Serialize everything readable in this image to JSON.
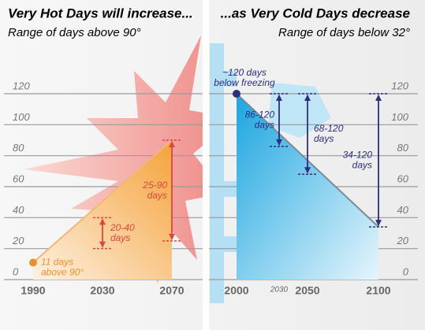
{
  "chart_data": [
    {
      "type": "range",
      "title": "Very Hot Days will increase...",
      "subtitle": "Range of days above 90°",
      "color": "#e8912f",
      "arrow_color": "#d9473f",
      "start": {
        "x": 1990,
        "value": 11,
        "label": [
          "11 days",
          "above 90°"
        ]
      },
      "ranges": [
        {
          "x": 2030,
          "low": 20,
          "high": 40,
          "label": [
            "20-40",
            "days"
          ]
        },
        {
          "x": 2070,
          "low": 25,
          "high": 90,
          "label": [
            "25-90",
            "days"
          ]
        }
      ],
      "xlim": [
        1990,
        2070
      ],
      "xticks": [
        1990,
        2030,
        2070
      ],
      "ylim": [
        0,
        120
      ],
      "yticks": [
        0,
        20,
        40,
        60,
        80,
        100,
        120
      ],
      "grid": true
    },
    {
      "type": "range",
      "title": "...as Very Cold Days decrease",
      "subtitle": "Range of days below 32°",
      "color": "#29a8e0",
      "arrow_color": "#2b2f7a",
      "start": {
        "x": 2000,
        "value": 120,
        "label": [
          "~120 days",
          "below freezing"
        ]
      },
      "ranges": [
        {
          "x": 2030,
          "low": 86,
          "high": 120,
          "label": [
            "86-120",
            "days"
          ]
        },
        {
          "x": 2050,
          "low": 68,
          "high": 120,
          "label": [
            "68-120",
            "days"
          ]
        },
        {
          "x": 2100,
          "low": 34,
          "high": 120,
          "label": [
            "34-120",
            "days"
          ]
        }
      ],
      "xlim": [
        2000,
        2100
      ],
      "xticks": [
        2000,
        2030,
        2050,
        2100
      ],
      "ylim": [
        0,
        120
      ],
      "yticks": [
        0,
        20,
        40,
        60,
        80,
        100,
        120
      ],
      "grid": true
    }
  ]
}
